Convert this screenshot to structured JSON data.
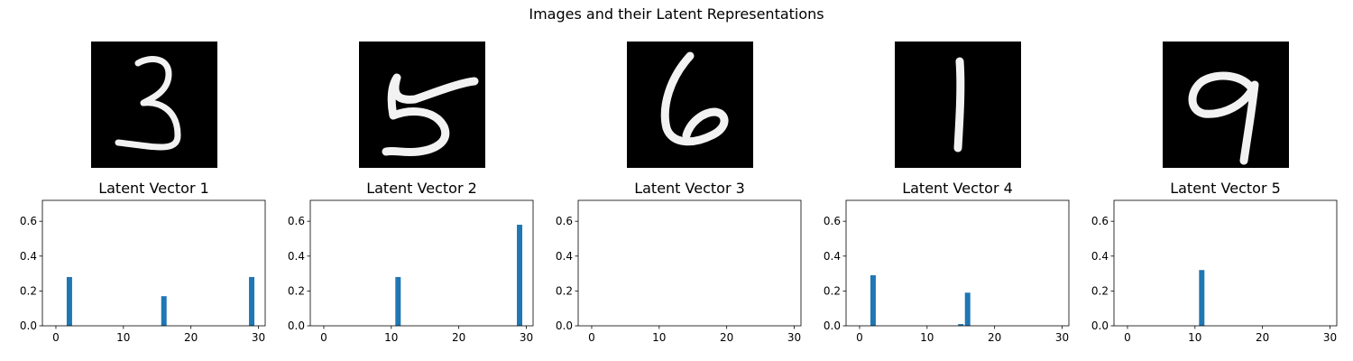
{
  "title": "Images and their Latent Representations",
  "chart_data": [
    {
      "type": "bar",
      "title": "Latent Vector 1",
      "image_digit": "3",
      "x": [
        2,
        16,
        29
      ],
      "values": [
        0.28,
        0.17,
        0.28
      ],
      "xlim": [
        -2,
        31
      ],
      "ylim": [
        0,
        0.72
      ],
      "xticks": [
        0,
        10,
        20,
        30
      ],
      "yticks": [
        0.0,
        0.2,
        0.4,
        0.6
      ],
      "bar_color": "#1f77b4",
      "grid": false
    },
    {
      "type": "bar",
      "title": "Latent Vector 2",
      "image_digit": "5",
      "x": [
        11,
        29
      ],
      "values": [
        0.28,
        0.58
      ],
      "xlim": [
        -2,
        31
      ],
      "ylim": [
        0,
        0.72
      ],
      "xticks": [
        0,
        10,
        20,
        30
      ],
      "yticks": [
        0.0,
        0.2,
        0.4,
        0.6
      ],
      "bar_color": "#1f77b4",
      "grid": false
    },
    {
      "type": "bar",
      "title": "Latent Vector 3",
      "image_digit": "6",
      "x": [],
      "values": [],
      "xlim": [
        -2,
        31
      ],
      "ylim": [
        0,
        0.72
      ],
      "xticks": [
        0,
        10,
        20,
        30
      ],
      "yticks": [
        0.0,
        0.2,
        0.4,
        0.6
      ],
      "bar_color": "#1f77b4",
      "grid": false
    },
    {
      "type": "bar",
      "title": "Latent Vector 4",
      "image_digit": "1",
      "x": [
        2,
        15,
        16
      ],
      "values": [
        0.29,
        0.01,
        0.19
      ],
      "xlim": [
        -2,
        31
      ],
      "ylim": [
        0,
        0.72
      ],
      "xticks": [
        0,
        10,
        20,
        30
      ],
      "yticks": [
        0.0,
        0.2,
        0.4,
        0.6
      ],
      "bar_color": "#1f77b4",
      "grid": false
    },
    {
      "type": "bar",
      "title": "Latent Vector 5",
      "image_digit": "9",
      "x": [
        11
      ],
      "values": [
        0.32
      ],
      "xlim": [
        -2,
        31
      ],
      "ylim": [
        0,
        0.72
      ],
      "xticks": [
        0,
        10,
        20,
        30
      ],
      "yticks": [
        0.0,
        0.2,
        0.4,
        0.6
      ],
      "bar_color": "#1f77b4",
      "grid": false
    }
  ]
}
